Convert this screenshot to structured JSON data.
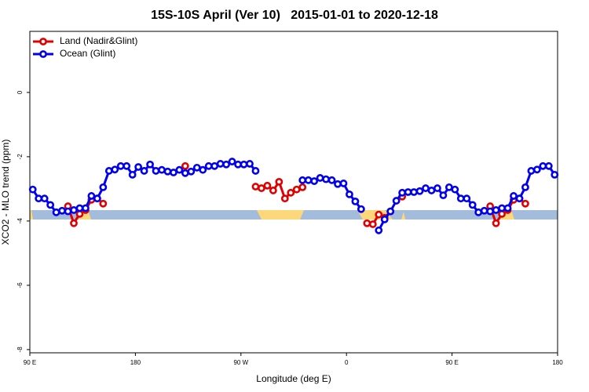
{
  "chart_data": {
    "type": "line",
    "title": "15S-10S April (Ver 10)   2015-01-01 to 2020-12-18",
    "xlabel": "Longitude (deg E)",
    "ylabel": "XCO2 - MLO trend (ppm)",
    "x": [
      92.5,
      97.5,
      102.5,
      107.5,
      112.5,
      117.5,
      122.5,
      127.5,
      132.5,
      137.5,
      142.5,
      147.5,
      152.5,
      157.5,
      162.5,
      167.5,
      172.5,
      177.5,
      182.5,
      187.5,
      192.5,
      197.5,
      202.5,
      207.5,
      212.5,
      217.5,
      222.5,
      227.5,
      232.5,
      237.5,
      242.5,
      247.5,
      252.5,
      257.5,
      262.5,
      267.5,
      272.5,
      277.5,
      282.5,
      287.5,
      292.5,
      297.5,
      302.5,
      307.5,
      312.5,
      317.5,
      322.5,
      327.5,
      332.5,
      337.5,
      342.5,
      347.5,
      352.5,
      357.5,
      362.5,
      367.5,
      372.5,
      377.5,
      382.5,
      387.5,
      392.5,
      397.5,
      402.5,
      407.5,
      412.5,
      417.5,
      422.5,
      427.5,
      432.5,
      437.5,
      442.5,
      447.5,
      452.5,
      457.5,
      462.5,
      467.5,
      472.5,
      477.5,
      482.5,
      487.5,
      492.5,
      497.5,
      502.5,
      507.5,
      512.5,
      517.5,
      522.5,
      527.5,
      532.5,
      537.5
    ],
    "series": [
      {
        "name": "Land (Nadir&Glint)",
        "color": "#e00000",
        "values": [
          null,
          null,
          null,
          null,
          null,
          null,
          -3.54,
          -4.07,
          -3.78,
          -3.66,
          -3.34,
          -3.3,
          -3.46,
          null,
          null,
          null,
          null,
          null,
          null,
          null,
          null,
          null,
          null,
          null,
          null,
          null,
          -2.29,
          null,
          null,
          null,
          null,
          null,
          null,
          null,
          null,
          null,
          null,
          null,
          -2.93,
          -2.98,
          -2.9,
          -3.05,
          -2.78,
          -3.3,
          -3.12,
          -3.02,
          -2.95,
          null,
          null,
          null,
          null,
          null,
          null,
          null,
          null,
          null,
          null,
          -4.07,
          -4.1,
          -3.8,
          -3.9,
          -3.7,
          null,
          -3.24,
          null,
          null,
          null,
          null,
          null,
          null,
          null,
          null,
          null,
          null,
          null,
          null,
          null,
          null,
          -3.54,
          -4.07,
          -3.78,
          -3.66,
          -3.34,
          -3.3,
          -3.46,
          null,
          null,
          null,
          null,
          null
        ]
      },
      {
        "name": "Ocean (Glint)",
        "color": "#0000ee",
        "values": [
          -3.02,
          -3.3,
          -3.3,
          -3.5,
          -3.73,
          -3.68,
          -3.7,
          -3.66,
          -3.6,
          -3.6,
          -3.22,
          -3.3,
          -2.95,
          -2.44,
          -2.4,
          -2.29,
          -2.29,
          -2.56,
          -2.32,
          -2.44,
          -2.24,
          -2.44,
          -2.41,
          -2.46,
          -2.49,
          -2.41,
          -2.51,
          -2.46,
          -2.34,
          -2.41,
          -2.29,
          -2.29,
          -2.22,
          -2.24,
          -2.15,
          -2.24,
          -2.24,
          -2.22,
          -2.44,
          null,
          null,
          null,
          null,
          null,
          null,
          null,
          -2.73,
          -2.73,
          -2.76,
          -2.66,
          -2.7,
          -2.73,
          -2.85,
          -2.83,
          -3.17,
          -3.39,
          -3.63,
          null,
          null,
          -4.29,
          -3.95,
          -3.7,
          -3.37,
          -3.12,
          -3.1,
          -3.1,
          -3.07,
          -2.98,
          -3.05,
          -2.98,
          -3.2,
          -2.95,
          -3.02,
          -3.3,
          -3.3,
          -3.5,
          -3.73,
          -3.68,
          -3.7,
          -3.66,
          -3.6,
          -3.6,
          -3.22,
          -3.3,
          -2.95,
          -2.44,
          -2.4,
          -2.29,
          -2.29,
          -2.56
        ]
      }
    ],
    "xlim": [
      90,
      540
    ],
    "xticks": [
      {
        "value": 90,
        "label": "90 E"
      },
      180,
      {
        "value": 270,
        "label": "90 W"
      },
      {
        "value": 360,
        "label": "0"
      },
      {
        "value": 450,
        "label": "90 E"
      },
      {
        "value": 540,
        "label": "180"
      }
    ],
    "ylim": [
      -8.1,
      1.9
    ],
    "yticks": [
      0,
      -2,
      -4,
      -6,
      -8
    ],
    "legend": "top-left"
  }
}
